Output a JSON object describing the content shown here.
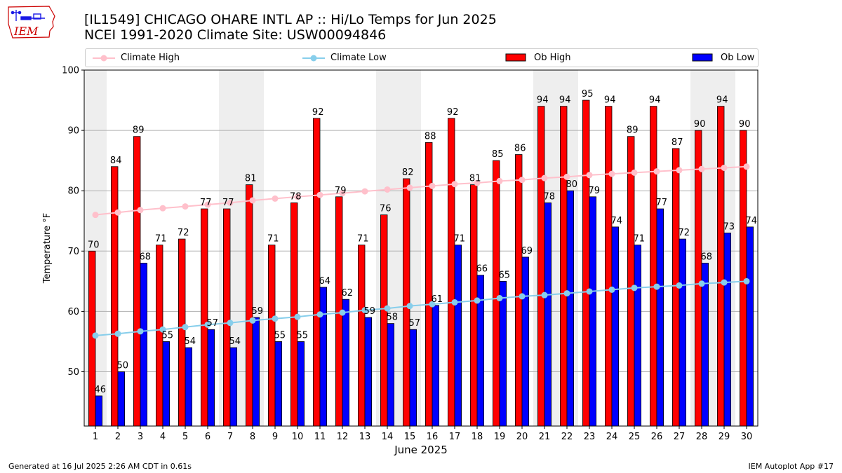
{
  "title": {
    "line1": "[IL1549] CHICAGO OHARE INTL AP :: Hi/Lo Temps for Jun 2025",
    "line2": "NCEI 1991-2020 Climate Site: USW00094846"
  },
  "logo": {
    "text": "IEM",
    "colors": {
      "text": "#cc0000",
      "map": "#1a1ae6"
    }
  },
  "legend": {
    "placement": "top",
    "items": [
      {
        "label": "Climate High",
        "kind": "line",
        "color": "#ffc0cb"
      },
      {
        "label": "Climate Low",
        "kind": "line",
        "color": "#87ceeb"
      },
      {
        "label": "Ob High",
        "kind": "bar",
        "color": "#ff0000"
      },
      {
        "label": "Ob Low",
        "kind": "bar",
        "color": "#0000ff"
      }
    ]
  },
  "footer": {
    "left": "Generated at 16 Jul 2025 2:26 AM CDT in 0.61s",
    "right": "IEM Autoplot App #17"
  },
  "chart_data": {
    "type": "bar",
    "title": "[IL1549] CHICAGO OHARE INTL AP :: Hi/Lo Temps for Jun 2025",
    "subtitle": "NCEI 1991-2020 Climate Site: USW00094846",
    "xlabel": "June 2025",
    "ylabel": "Temperature °F",
    "ylim": [
      41,
      100
    ],
    "yticks": [
      50,
      60,
      70,
      80,
      90,
      100
    ],
    "grid": "horizontal",
    "categories": [
      1,
      2,
      3,
      4,
      5,
      6,
      7,
      8,
      9,
      10,
      11,
      12,
      13,
      14,
      15,
      16,
      17,
      18,
      19,
      20,
      21,
      22,
      23,
      24,
      25,
      26,
      27,
      28,
      29,
      30
    ],
    "weekend_days": [
      1,
      7,
      8,
      14,
      15,
      21,
      22,
      28,
      29
    ],
    "weekend_shade_color": "#eeeeee",
    "series": [
      {
        "name": "Ob High",
        "type": "bar",
        "color": "#ff0000",
        "values": [
          70,
          84,
          89,
          71,
          72,
          77,
          77,
          81,
          71,
          78,
          92,
          79,
          71,
          76,
          82,
          88,
          92,
          81,
          85,
          86,
          94,
          94,
          95,
          94,
          89,
          94,
          87,
          90,
          94,
          90
        ]
      },
      {
        "name": "Ob Low",
        "type": "bar",
        "color": "#0000ff",
        "values": [
          46,
          50,
          68,
          55,
          54,
          57,
          54,
          59,
          55,
          55,
          64,
          62,
          59,
          58,
          57,
          61,
          71,
          66,
          65,
          69,
          78,
          80,
          79,
          74,
          71,
          77,
          72,
          68,
          73,
          74
        ]
      },
      {
        "name": "Climate High",
        "type": "line",
        "color": "#ffc0cb",
        "values": [
          76.0,
          76.4,
          76.8,
          77.1,
          77.4,
          77.7,
          78.0,
          78.4,
          78.7,
          79.0,
          79.3,
          79.6,
          79.9,
          80.2,
          80.5,
          80.8,
          81.1,
          81.3,
          81.6,
          81.8,
          82.1,
          82.3,
          82.6,
          82.8,
          83.0,
          83.2,
          83.4,
          83.6,
          83.8,
          84.0
        ]
      },
      {
        "name": "Climate Low",
        "type": "line",
        "color": "#87ceeb",
        "values": [
          56.0,
          56.3,
          56.7,
          57.0,
          57.4,
          57.8,
          58.1,
          58.5,
          58.8,
          59.1,
          59.5,
          59.8,
          60.2,
          60.5,
          60.9,
          61.2,
          61.5,
          61.8,
          62.2,
          62.5,
          62.7,
          63.0,
          63.3,
          63.6,
          63.9,
          64.1,
          64.3,
          64.6,
          64.8,
          65.0
        ]
      }
    ]
  }
}
